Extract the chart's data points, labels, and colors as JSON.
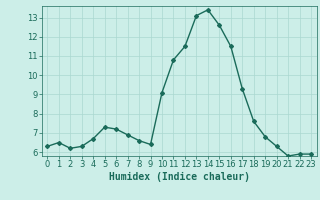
{
  "x": [
    0,
    1,
    2,
    3,
    4,
    5,
    6,
    7,
    8,
    9,
    10,
    11,
    12,
    13,
    14,
    15,
    16,
    17,
    18,
    19,
    20,
    21,
    22,
    23
  ],
  "y": [
    6.3,
    6.5,
    6.2,
    6.3,
    6.7,
    7.3,
    7.2,
    6.9,
    6.6,
    6.4,
    9.1,
    10.8,
    11.5,
    13.1,
    13.4,
    12.6,
    11.5,
    9.3,
    7.6,
    6.8,
    6.3,
    5.8,
    5.9,
    5.9
  ],
  "xlabel": "Humidex (Indice chaleur)",
  "ylim": [
    5.8,
    13.6
  ],
  "xlim": [
    -0.5,
    23.5
  ],
  "yticks": [
    6,
    7,
    8,
    9,
    10,
    11,
    12,
    13
  ],
  "xticks": [
    0,
    1,
    2,
    3,
    4,
    5,
    6,
    7,
    8,
    9,
    10,
    11,
    12,
    13,
    14,
    15,
    16,
    17,
    18,
    19,
    20,
    21,
    22,
    23
  ],
  "line_color": "#1a6b5a",
  "marker": "D",
  "marker_size": 2.0,
  "bg_color": "#cceee8",
  "grid_color": "#aad8d0",
  "xlabel_fontsize": 7,
  "tick_fontsize": 6
}
